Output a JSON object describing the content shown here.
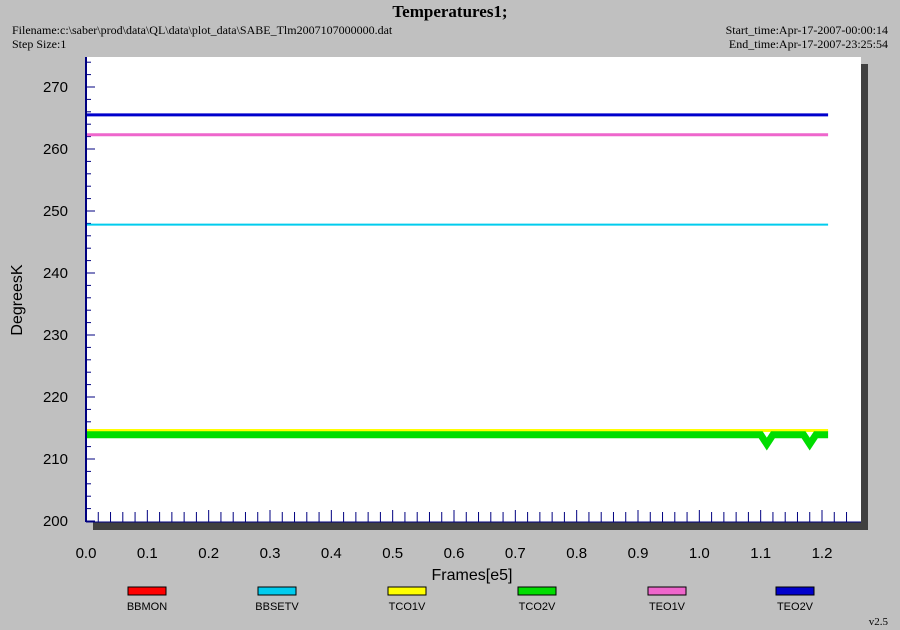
{
  "header": {
    "title": "Temperatures1;",
    "filename": "Filename:c:\\saber\\prod\\data\\QL\\data\\plot_data\\SABE_Tlm2007107000000.dat",
    "step_size": "Step Size:1",
    "start_time": "Start_time:Apr-17-2007-00:00:14",
    "end_time": "End_time:Apr-17-2007-23:25:54"
  },
  "version": "v2.5",
  "colors": {
    "background": "#c0c0c0",
    "plot_area": "#ffffff",
    "axis": "#000080"
  },
  "chart_data": {
    "type": "line",
    "title": "Temperatures1;",
    "xlabel": "Frames[e5]",
    "ylabel": "DegreesK",
    "xlim": [
      0.0,
      1.25
    ],
    "ylim": [
      200,
      275
    ],
    "x_ticks": [
      "0.0",
      "0.1",
      "0.2",
      "0.3",
      "0.4",
      "0.5",
      "0.6",
      "0.7",
      "0.8",
      "0.9",
      "1.0",
      "1.1",
      "1.2"
    ],
    "y_ticks": [
      "200",
      "210",
      "220",
      "230",
      "240",
      "250",
      "260",
      "270"
    ],
    "grid": false,
    "legend_position": "bottom",
    "series": [
      {
        "name": "BBMON",
        "color": "#ff0000",
        "x": [],
        "y": []
      },
      {
        "name": "BBSETV",
        "color": "#00ccee",
        "x": [
          0.0,
          0.2,
          0.4,
          0.6,
          0.8,
          1.0,
          1.21
        ],
        "y": [
          247.8,
          247.8,
          247.8,
          247.8,
          247.8,
          247.8,
          247.8
        ]
      },
      {
        "name": "TCO1V",
        "color": "#ffff00",
        "x": [
          0.0,
          0.2,
          0.4,
          0.6,
          0.8,
          1.0,
          1.21
        ],
        "y": [
          214.6,
          214.6,
          214.6,
          214.6,
          214.6,
          214.6,
          214.6
        ]
      },
      {
        "name": "TCO2V",
        "color": "#00dd00",
        "x": [
          0.0,
          0.2,
          0.4,
          0.6,
          0.8,
          1.0,
          1.1,
          1.11,
          1.12,
          1.17,
          1.18,
          1.19,
          1.21
        ],
        "y": [
          213.9,
          213.9,
          213.9,
          213.9,
          213.9,
          213.9,
          213.9,
          212.4,
          213.9,
          213.9,
          212.4,
          213.9,
          213.9
        ]
      },
      {
        "name": "TEO1V",
        "color": "#ee66cc",
        "x": [
          0.0,
          0.2,
          0.4,
          0.6,
          0.8,
          1.0,
          1.21
        ],
        "y": [
          262.3,
          262.3,
          262.3,
          262.3,
          262.3,
          262.3,
          262.3
        ]
      },
      {
        "name": "TEO2V",
        "color": "#0000cc",
        "x": [
          0.0,
          0.2,
          0.4,
          0.6,
          0.8,
          1.0,
          1.21
        ],
        "y": [
          265.5,
          265.5,
          265.5,
          265.5,
          265.5,
          265.5,
          265.5
        ]
      }
    ]
  }
}
